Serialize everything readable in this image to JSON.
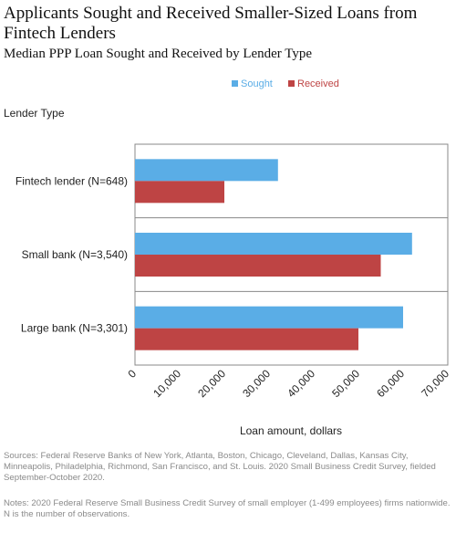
{
  "header": {
    "title": "Applicants Sought and Received Smaller-Sized Loans from Fintech Lenders",
    "subtitle": "Median PPP Loan Sought and Received by Lender Type"
  },
  "chart_data": {
    "type": "bar",
    "orientation": "horizontal",
    "categories": [
      "Fintech lender (N=648)",
      "Small bank (N=3,540)",
      "Large bank (N=3,301)"
    ],
    "series": [
      {
        "name": "Sought",
        "values": [
          32000,
          62000,
          60000
        ]
      },
      {
        "name": "Received",
        "values": [
          20000,
          55000,
          50000
        ]
      }
    ],
    "xlabel": "Loan amount, dollars",
    "ylabel": "Lender Type",
    "xlim": [
      0,
      70000
    ],
    "x_ticks": [
      "0",
      "10,000",
      "20,000",
      "30,000",
      "40,000",
      "50,000",
      "60,000",
      "70,000"
    ],
    "grid": false,
    "legend_position": "top-center",
    "colors": {
      "Sought": "#5aade6",
      "Received": "#be4444"
    }
  },
  "footer": {
    "sources": "Sources: Federal Reserve Banks of New York, Atlanta, Boston, Chicago, Cleveland, Dallas, Kansas City, Minneapolis, Philadelphia, Richmond, San Francisco, and St. Louis. 2020 Small Business Credit Survey, fielded September-October 2020.",
    "notes": "Notes: 2020 Federal Reserve Small Business Credit Survey of small employer (1-499 employees) firms nationwide. N is the number of observations."
  }
}
